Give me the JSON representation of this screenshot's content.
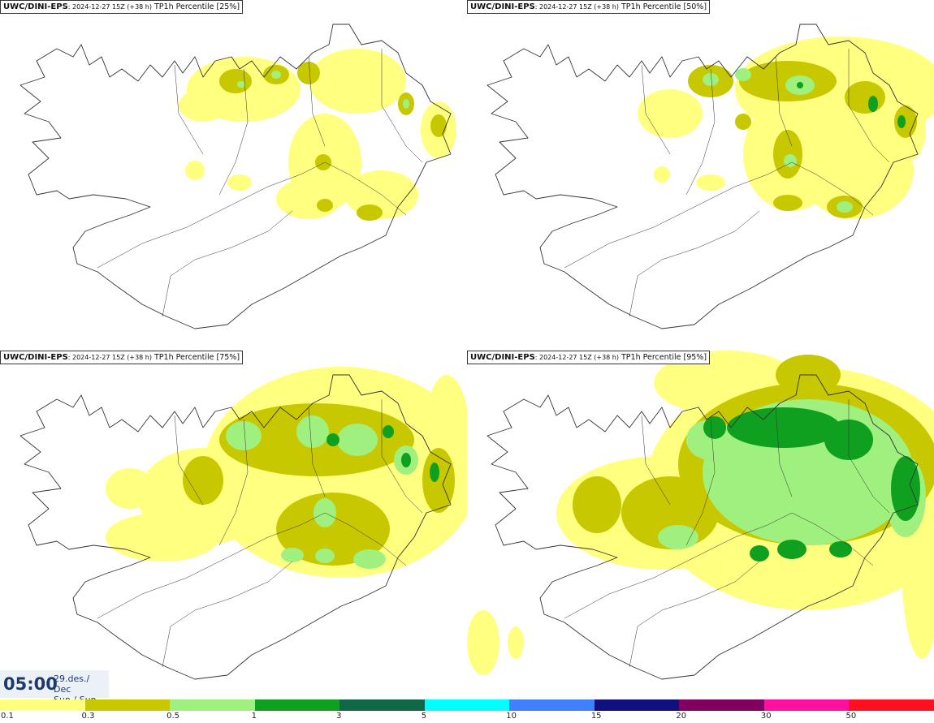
{
  "panels": [
    {
      "model": "UWC/DINI-EPS",
      "run": ": 2024-12-27 15Z (+38 h)",
      "field": " TP1h Percentile [25%]"
    },
    {
      "model": "UWC/DINI-EPS",
      "run": ": 2024-12-27 15Z (+38 h)",
      "field": " TP1h Percentile [50%]"
    },
    {
      "model": "UWC/DINI-EPS",
      "run": ": 2024-12-27 15Z (+38 h)",
      "field": " TP1h Percentile [75%]"
    },
    {
      "model": "UWC/DINI-EPS",
      "run": ": 2024-12-27 15Z (+38 h)",
      "field": " TP1h Percentile [95%]"
    }
  ],
  "time": {
    "clock": "05:00",
    "date_line": "29.des./ Dec",
    "day_line": "Sun./ Sun"
  },
  "legend": {
    "bins": [
      {
        "label": "0.1",
        "color": "#ffff80"
      },
      {
        "label": "0.3",
        "color": "#c8c800"
      },
      {
        "label": "0.5",
        "color": "#a0f080"
      },
      {
        "label": "1",
        "color": "#10a020"
      },
      {
        "label": "3",
        "color": "#106848"
      },
      {
        "label": "5",
        "color": "#00ffff"
      },
      {
        "label": "10",
        "color": "#4080ff"
      },
      {
        "label": "15",
        "color": "#101080"
      },
      {
        "label": "20",
        "color": "#800060"
      },
      {
        "label": "30",
        "color": "#ff10a0"
      },
      {
        "label": "50",
        "color": "#ff1020"
      }
    ]
  },
  "colors": {
    "light_yellow": "#ffff80",
    "olive": "#c8c800",
    "light_green": "#a0f080",
    "green": "#10a020",
    "coast": "#333333"
  }
}
